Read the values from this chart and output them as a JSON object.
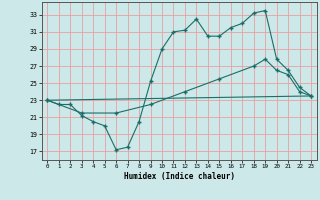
{
  "xlabel": "Humidex (Indice chaleur)",
  "bg_color": "#cce8e8",
  "line_color": "#1a6e6a",
  "grid_color": "#e8a0a0",
  "x_ticks": [
    0,
    1,
    2,
    3,
    4,
    5,
    6,
    7,
    8,
    9,
    10,
    11,
    12,
    13,
    14,
    15,
    16,
    17,
    18,
    19,
    20,
    21,
    22,
    23
  ],
  "y_ticks": [
    17,
    19,
    21,
    23,
    25,
    27,
    29,
    31,
    33
  ],
  "ylim": [
    16.0,
    34.5
  ],
  "xlim": [
    -0.5,
    23.5
  ],
  "line1_x": [
    0,
    1,
    2,
    3,
    4,
    5,
    6,
    7,
    8,
    9,
    10,
    11,
    12,
    13,
    14,
    15,
    16,
    17,
    18,
    19,
    20,
    21,
    22,
    23
  ],
  "line1_y": [
    23,
    22.5,
    22.5,
    21.2,
    20.5,
    20.0,
    17.2,
    17.5,
    20.5,
    25.2,
    29.0,
    31.0,
    31.2,
    32.5,
    30.5,
    30.5,
    31.5,
    32.0,
    33.2,
    33.5,
    27.8,
    26.5,
    24.5,
    23.5
  ],
  "line2_x": [
    0,
    3,
    6,
    9,
    12,
    15,
    18,
    19,
    20,
    21,
    22,
    23
  ],
  "line2_y": [
    23,
    21.5,
    21.5,
    22.5,
    24.0,
    25.5,
    27.0,
    27.8,
    26.5,
    26.0,
    24.0,
    23.5
  ],
  "line3_x": [
    0,
    23
  ],
  "line3_y": [
    23,
    23.5
  ]
}
